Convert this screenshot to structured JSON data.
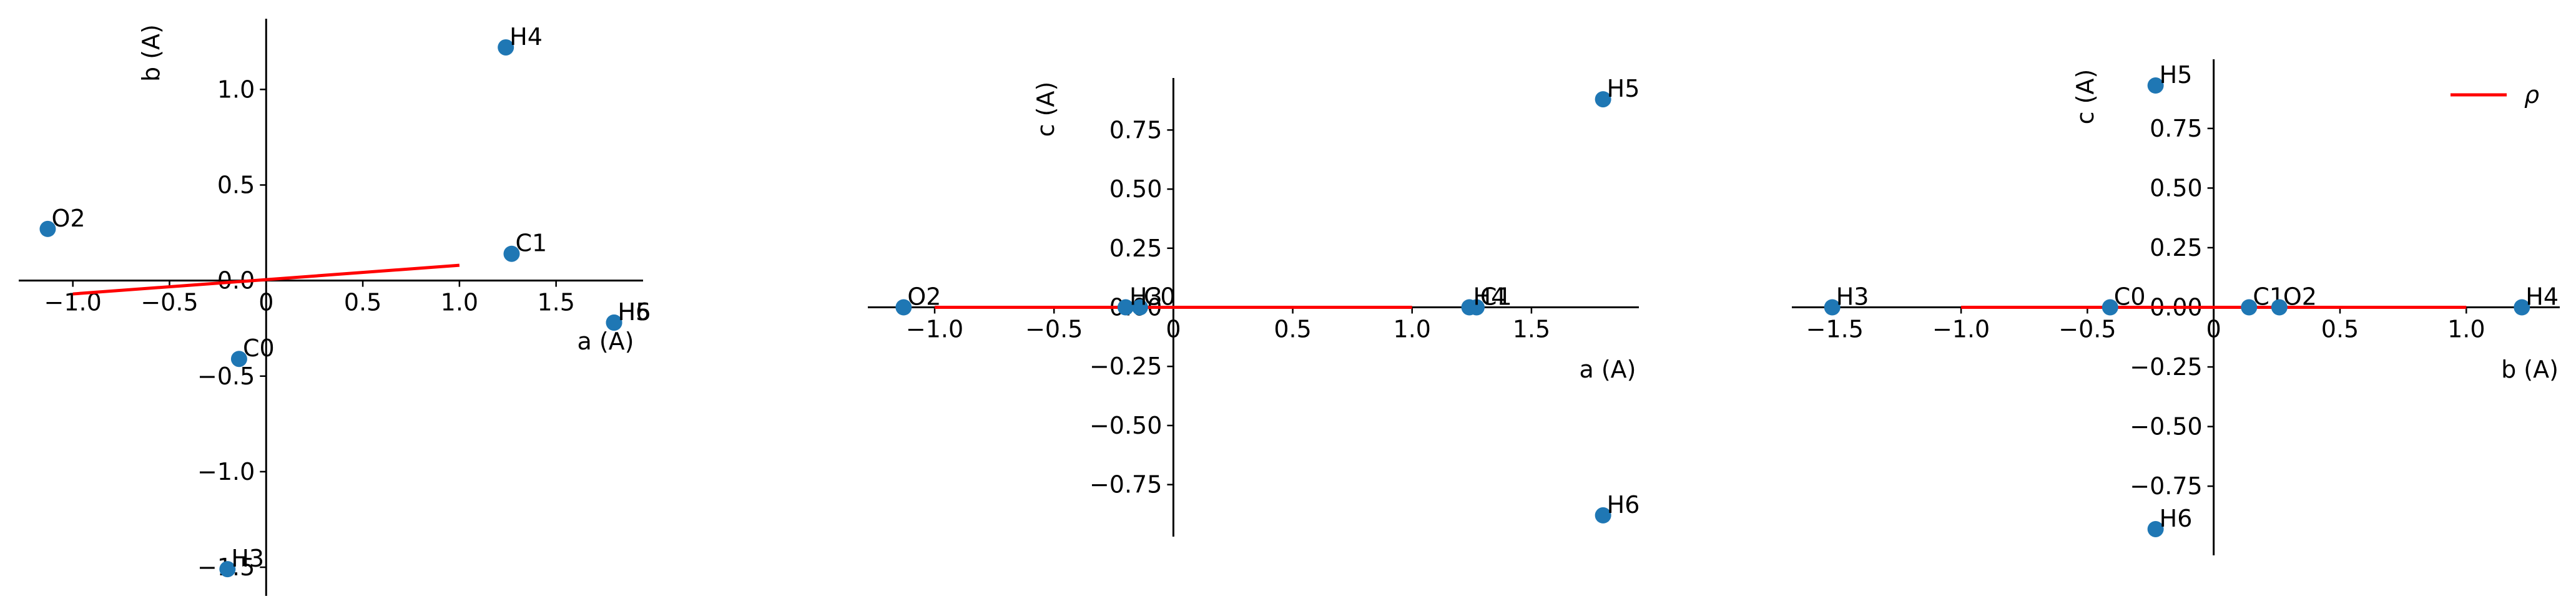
{
  "chart_data": [
    {
      "type": "scatter",
      "xlabel": "a (A)",
      "ylabel": "b (A)",
      "xlim": [
        -1.28,
        1.95
      ],
      "ylim": [
        -1.65,
        1.37
      ],
      "x_ticks": [
        -1.0,
        -0.5,
        0.0,
        0.5,
        1.0,
        1.5
      ],
      "x_tick_labels": [
        "−1.0",
        "−0.5",
        "0",
        "0.5",
        "1.0",
        "1.5"
      ],
      "y_ticks": [
        -1.5,
        -1.0,
        -0.5,
        0.0,
        0.5,
        1.0
      ],
      "y_tick_labels": [
        "−1.5",
        "−1.0",
        "−0.5",
        "0.0",
        "0.5",
        "1.0"
      ],
      "points": [
        {
          "label": "O2",
          "x": -1.13,
          "y": 0.27
        },
        {
          "label": "C0",
          "x": -0.14,
          "y": -0.41
        },
        {
          "label": "C1",
          "x": 1.27,
          "y": 0.14
        },
        {
          "label": "H3",
          "x": -0.2,
          "y": -1.51
        },
        {
          "label": "H4",
          "x": 1.24,
          "y": 1.22
        },
        {
          "label": "H5",
          "x": 1.8,
          "y": -0.22
        },
        {
          "label": "H6",
          "x": 1.8,
          "y": -0.22
        }
      ],
      "line": {
        "x": [
          -1.0,
          1.0
        ],
        "y": [
          -0.07,
          0.08
        ]
      }
    },
    {
      "type": "scatter",
      "xlabel": "a (A)",
      "ylabel": "c (A)",
      "xlim": [
        -1.28,
        1.95
      ],
      "ylim": [
        -0.97,
        0.97
      ],
      "x_ticks": [
        -1.0,
        -0.5,
        0.0,
        0.5,
        1.0,
        1.5
      ],
      "x_tick_labels": [
        "−1.0",
        "−0.5",
        "0",
        "0.5",
        "1.0",
        "1.5"
      ],
      "y_ticks": [
        -0.75,
        -0.5,
        -0.25,
        0.0,
        0.25,
        0.5,
        0.75
      ],
      "y_tick_labels": [
        "−0.75",
        "−0.50",
        "−0.25",
        "0.00",
        "0.25",
        "0.50",
        "0.75"
      ],
      "points": [
        {
          "label": "O2",
          "x": -1.13,
          "y": 0.0
        },
        {
          "label": "C0",
          "x": -0.14,
          "y": 0.0
        },
        {
          "label": "H3",
          "x": -0.2,
          "y": 0.0
        },
        {
          "label": "C1",
          "x": 1.27,
          "y": 0.0
        },
        {
          "label": "H4",
          "x": 1.24,
          "y": 0.0
        },
        {
          "label": "H5",
          "x": 1.8,
          "y": 0.88
        },
        {
          "label": "H6",
          "x": 1.8,
          "y": -0.88
        }
      ],
      "line": {
        "x": [
          -1.0,
          1.0
        ],
        "y": [
          0.0,
          0.0
        ]
      }
    },
    {
      "type": "scatter",
      "xlabel": "b (A)",
      "ylabel": "c (A)",
      "xlim": [
        -1.67,
        1.37
      ],
      "ylim": [
        -1.04,
        1.04
      ],
      "x_ticks": [
        -1.5,
        -1.0,
        -0.5,
        0.0,
        0.5,
        1.0
      ],
      "x_tick_labels": [
        "−1.5",
        "−1.0",
        "−0.5",
        "0",
        "0.5",
        "1.0"
      ],
      "y_ticks": [
        -0.75,
        -0.5,
        -0.25,
        0.0,
        0.25,
        0.5,
        0.75
      ],
      "y_tick_labels": [
        "−0.75",
        "−0.50",
        "−0.25",
        "0.00",
        "0.25",
        "0.50",
        "0.75"
      ],
      "points": [
        {
          "label": "H3",
          "x": -1.51,
          "y": 0.0
        },
        {
          "label": "C0",
          "x": -0.41,
          "y": 0.0
        },
        {
          "label": "C1",
          "x": 0.14,
          "y": 0.0
        },
        {
          "label": "O2",
          "x": 0.26,
          "y": 0.0
        },
        {
          "label": "H4",
          "x": 1.22,
          "y": 0.0
        },
        {
          "label": "H5",
          "x": -0.23,
          "y": 0.93
        },
        {
          "label": "H6",
          "x": -0.23,
          "y": -0.93
        }
      ],
      "line": {
        "x": [
          -1.0,
          1.0
        ],
        "y": [
          0.0,
          0.0
        ]
      },
      "legend": {
        "label": "ρ",
        "placement": "top-right"
      }
    }
  ],
  "colors": {
    "points": "#1f77b4",
    "line": "#ff0000",
    "axis": "#000000",
    "text": "#000000"
  }
}
